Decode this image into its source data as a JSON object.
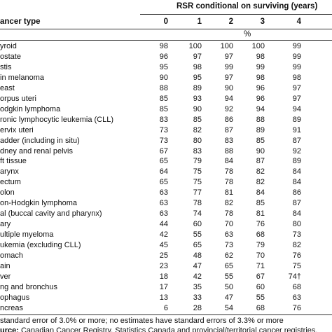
{
  "header": {
    "title": "RSR conditional on surviving (years)",
    "columns": [
      "ancer type",
      "0",
      "1",
      "2",
      "3",
      "4"
    ],
    "unit": "%"
  },
  "table": {
    "rows": [
      [
        "yroid",
        98,
        100,
        100,
        100,
        99
      ],
      [
        "ostate",
        96,
        97,
        97,
        98,
        99
      ],
      [
        "stis",
        95,
        98,
        99,
        99,
        99
      ],
      [
        "in melanoma",
        90,
        95,
        97,
        98,
        98
      ],
      [
        "east",
        88,
        89,
        90,
        96,
        97
      ],
      [
        "orpus uteri",
        85,
        93,
        94,
        96,
        97
      ],
      [
        "odgkin lymphoma",
        85,
        90,
        92,
        94,
        94
      ],
      [
        "ronic lymphocytic leukemia (CLL)",
        83,
        85,
        86,
        88,
        89
      ],
      [
        "ervix uteri",
        73,
        82,
        87,
        89,
        91
      ],
      [
        "adder (including in situ)",
        73,
        80,
        83,
        85,
        87
      ],
      [
        "dney and renal pelvis",
        67,
        83,
        88,
        90,
        92
      ],
      [
        "ft tissue",
        65,
        79,
        84,
        87,
        89
      ],
      [
        "arynx",
        64,
        75,
        78,
        82,
        84
      ],
      [
        "ectum",
        65,
        75,
        78,
        82,
        84
      ],
      [
        "olon",
        63,
        77,
        81,
        84,
        86
      ],
      [
        "on-Hodgkin lymphoma",
        63,
        78,
        82,
        85,
        87
      ],
      [
        "al (buccal cavity and pharynx)",
        63,
        74,
        78,
        81,
        84
      ],
      [
        "ary",
        44,
        60,
        70,
        76,
        80
      ],
      [
        "ultiple myeloma",
        42,
        55,
        63,
        68,
        73
      ],
      [
        "ukemia (excluding CLL)",
        45,
        65,
        73,
        79,
        82
      ],
      [
        "omach",
        25,
        48,
        62,
        70,
        76
      ],
      [
        "ain",
        23,
        47,
        65,
        71,
        75
      ],
      [
        "ver",
        18,
        42,
        55,
        67,
        "74†"
      ],
      [
        "ng and bronchus",
        17,
        35,
        50,
        60,
        68
      ],
      [
        "ophagus",
        13,
        33,
        47,
        55,
        63
      ],
      [
        "ncreas",
        6,
        28,
        54,
        68,
        76
      ]
    ]
  },
  "footnote": "standard error of 3.0% or more; no estimates have standard errors of 3.3% or more",
  "source": {
    "label": "urce:",
    "text": "Canadian Cancer Registry, Statistics Canada and provincial/territorial cancer registries."
  }
}
